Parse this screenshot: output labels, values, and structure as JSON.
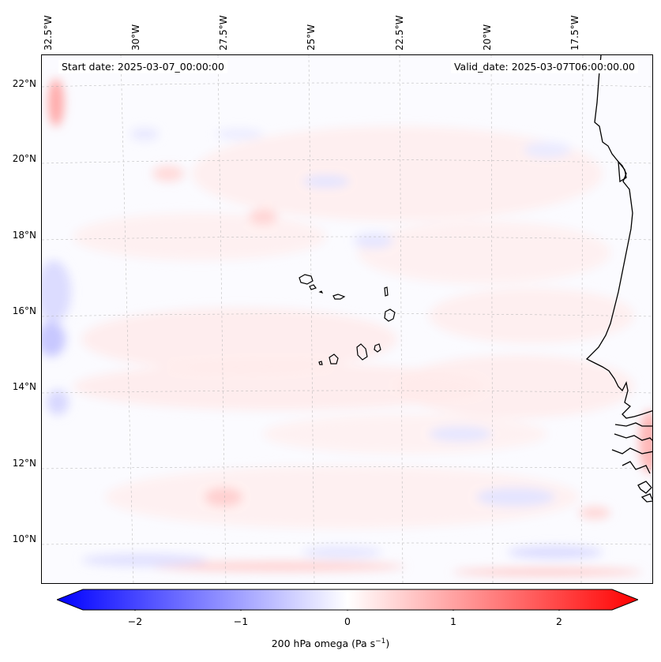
{
  "map": {
    "longitude_labels": [
      "32.5°W",
      "30°W",
      "27.5°W",
      "25°W",
      "22.5°W",
      "20°W",
      "17.5°W"
    ],
    "latitude_labels": [
      "22°N",
      "20°N",
      "18°N",
      "16°N",
      "14°N",
      "12°N",
      "10°N"
    ],
    "start_date": "Start date: 2025-03-07_00:00:00",
    "valid_date": "Valid_date: 2025-03-07T06:00:00.00",
    "field": "200 hPa omega",
    "colors": {
      "negative": "#0000ff",
      "neutral": "#ffffff",
      "positive": "#ff0000",
      "coastline": "#000000",
      "gridline": "#b0b0b0"
    }
  },
  "colorbar": {
    "ticks": [
      "−2",
      "−1",
      "0",
      "1",
      "2"
    ],
    "label_main": "200 hPa omega (Pa s",
    "label_sup": "−1",
    "label_end": ")",
    "min": -2.75,
    "max": 2.75
  }
}
